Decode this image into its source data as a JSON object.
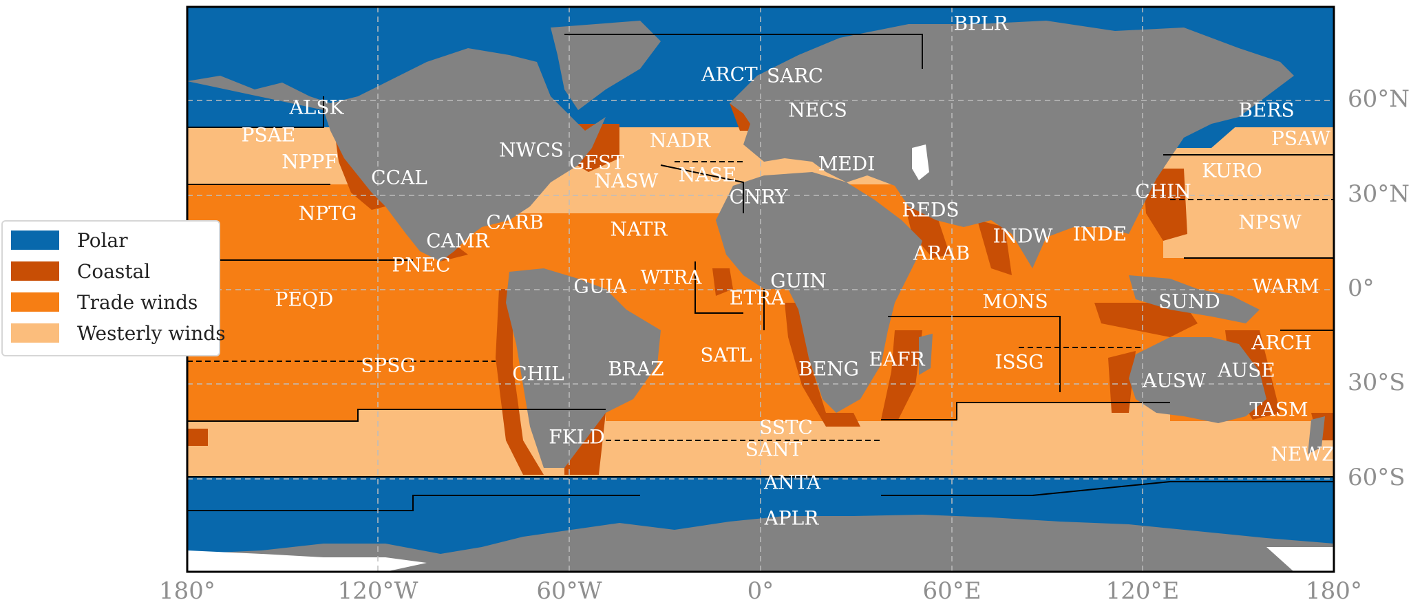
{
  "colors": {
    "polar": "#0868ac",
    "coastal": "#c84e05",
    "trade": "#f67e14",
    "westerly": "#fbbd7c",
    "land": "#828282",
    "ice": "#ffffff",
    "border": "#000000",
    "grid": "#bdbdbd",
    "tick": "#8f8f8f"
  },
  "legend": [
    {
      "label": "Polar",
      "color": "#0868ac"
    },
    {
      "label": "Coastal",
      "color": "#c84e05"
    },
    {
      "label": "Trade winds",
      "color": "#f67e14"
    },
    {
      "label": "Westerly winds",
      "color": "#fbbd7c"
    }
  ],
  "x_ticks": [
    "180°",
    "120°W",
    "60°W",
    "0°",
    "60°E",
    "120°E",
    "180°"
  ],
  "y_ticks": [
    "60°N",
    "30°N",
    "0°",
    "30°S",
    "60°S"
  ],
  "provinces": [
    "BPLR",
    "ARCT",
    "SARC",
    "ALSK",
    "NECS",
    "BERS",
    "PSAE",
    "NADR",
    "NWCS",
    "PSAW",
    "NPPF",
    "GFST",
    "MEDI",
    "KURO",
    "CCAL",
    "NASW",
    "NASE",
    "CHIN",
    "CNRY",
    "NPTG",
    "REDS",
    "NPSW",
    "CARB",
    "CAMR",
    "INDW",
    "INDE",
    "NATR",
    "ARAB",
    "PNEC",
    "WTRA",
    "GUIN",
    "GUIA",
    "WARM",
    "PEQD",
    "ETRA",
    "SUND",
    "MONS",
    "ARCH",
    "SATL",
    "EAFR",
    "SPSG",
    "BRAZ",
    "ISSG",
    "BENG",
    "CHIL",
    "AUSE",
    "AUSW",
    "TASM",
    "SSTC",
    "FKLD",
    "SANT",
    "NEWZ",
    "ANTA",
    "APLR"
  ]
}
